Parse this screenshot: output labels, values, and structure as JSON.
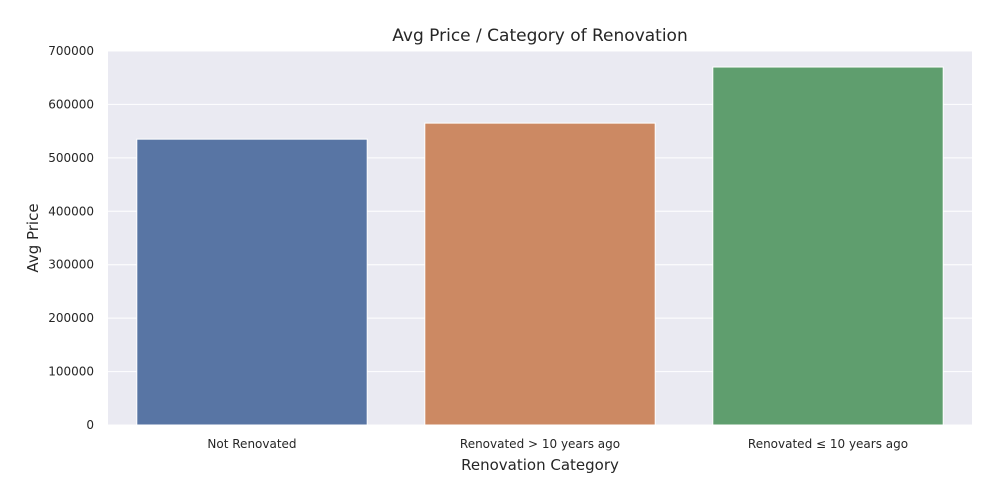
{
  "chart_data": {
    "type": "bar",
    "title": "Avg Price / Category of Renovation",
    "xlabel": "Renovation Category",
    "ylabel": "Avg Price",
    "categories": [
      "Not Renovated",
      "Renovated > 10 years ago",
      "Renovated ≤ 10 years ago"
    ],
    "values": [
      535000,
      565000,
      670000
    ],
    "colors": [
      "#5875a4",
      "#cc8963",
      "#5f9e6e"
    ],
    "ylim": [
      0,
      700000
    ],
    "yticks": [
      0,
      100000,
      200000,
      300000,
      400000,
      500000,
      600000,
      700000
    ],
    "ytick_labels": [
      "0",
      "100000",
      "200000",
      "300000",
      "400000",
      "500000",
      "600000",
      "700000"
    ],
    "grid": true,
    "background_color": "#eaeaf2",
    "gridline_color": "#ffffff"
  }
}
